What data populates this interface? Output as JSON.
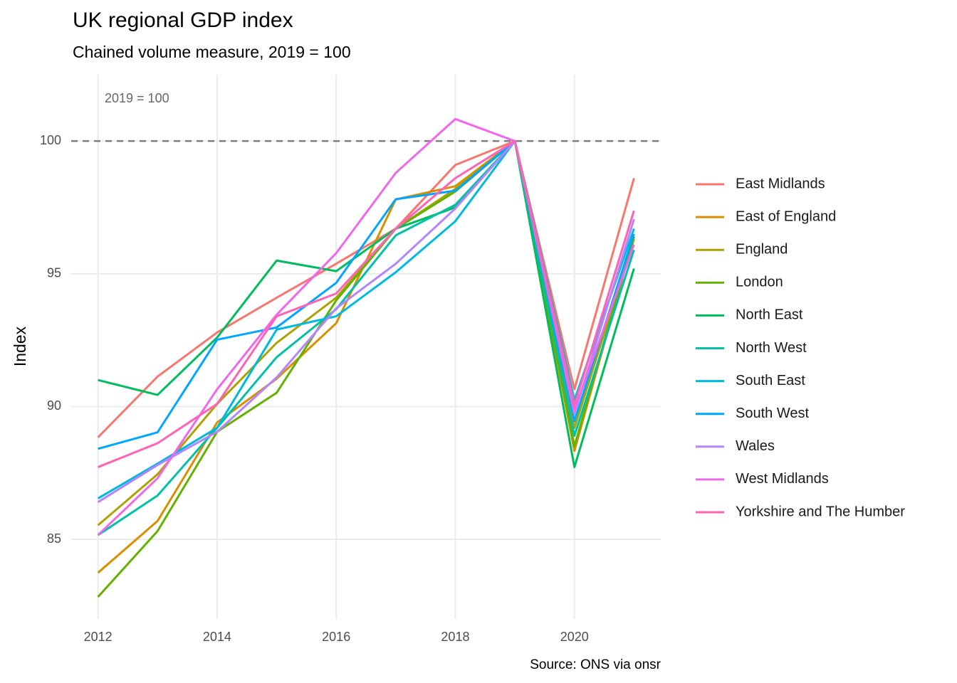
{
  "chart_data": {
    "type": "line",
    "title": "UK regional GDP index",
    "subtitle": "Chained volume measure, 2019 = 100",
    "y_label": "Index",
    "caption": "Source: ONS via onsr",
    "annotation": "2019 = 100",
    "reference_line": 100,
    "x": [
      2012,
      2013,
      2014,
      2015,
      2016,
      2017,
      2018,
      2019,
      2020,
      2021
    ],
    "xlim": [
      2011.55,
      2021.45
    ],
    "xticks": [
      2012,
      2014,
      2016,
      2018,
      2020
    ],
    "ylim": [
      82,
      102.5
    ],
    "yticks": [
      85,
      90,
      95,
      100
    ],
    "grid": true,
    "legend": "right",
    "series": [
      {
        "name": "East Midlands",
        "color": "#F8766D",
        "values": [
          88.84,
          91.13,
          92.79,
          94.1,
          95.38,
          96.7,
          99.1,
          100,
          90.65,
          98.6
        ]
      },
      {
        "name": "East of England",
        "color": "#DB8E00",
        "values": [
          83.74,
          85.69,
          89.4,
          91.05,
          93.14,
          97.8,
          98.3,
          100,
          88.33,
          96.4
        ]
      },
      {
        "name": "England",
        "color": "#AEA200",
        "values": [
          85.53,
          87.45,
          90.1,
          92.4,
          94.1,
          96.7,
          98.2,
          100,
          89.2,
          96.3
        ]
      },
      {
        "name": "London",
        "color": "#64B200",
        "values": [
          82.83,
          85.31,
          89.05,
          90.52,
          94.0,
          96.7,
          98.1,
          100,
          88.5,
          96.4
        ]
      },
      {
        "name": "North East",
        "color": "#00BD5C",
        "values": [
          91.0,
          90.44,
          92.6,
          95.5,
          95.1,
          96.7,
          97.5,
          100,
          87.72,
          95.2
        ]
      },
      {
        "name": "North West",
        "color": "#00C1A7",
        "values": [
          85.16,
          86.65,
          89.2,
          91.86,
          93.67,
          96.45,
          97.6,
          100,
          88.9,
          95.9
        ]
      },
      {
        "name": "South East",
        "color": "#00BADE",
        "values": [
          86.54,
          87.85,
          89.2,
          92.9,
          93.4,
          95.06,
          96.98,
          100,
          90.25,
          96.7
        ]
      },
      {
        "name": "South West",
        "color": "#00A6FF",
        "values": [
          88.41,
          89.03,
          92.52,
          92.98,
          94.66,
          97.81,
          98.13,
          100,
          89.45,
          96.5
        ]
      },
      {
        "name": "Wales",
        "color": "#B385FF",
        "values": [
          86.4,
          87.8,
          89.05,
          91.1,
          93.7,
          95.38,
          97.46,
          100,
          89.72,
          97.06
        ]
      },
      {
        "name": "West Midlands",
        "color": "#EF67EB",
        "values": [
          85.16,
          87.3,
          90.65,
          93.46,
          95.78,
          98.8,
          100.83,
          100,
          89.85,
          96.1
        ]
      },
      {
        "name": "Yorkshire and The Humber",
        "color": "#FF63B6",
        "values": [
          87.72,
          88.62,
          90.1,
          93.4,
          94.26,
          96.7,
          98.6,
          100,
          90.04,
          97.38
        ]
      }
    ]
  }
}
